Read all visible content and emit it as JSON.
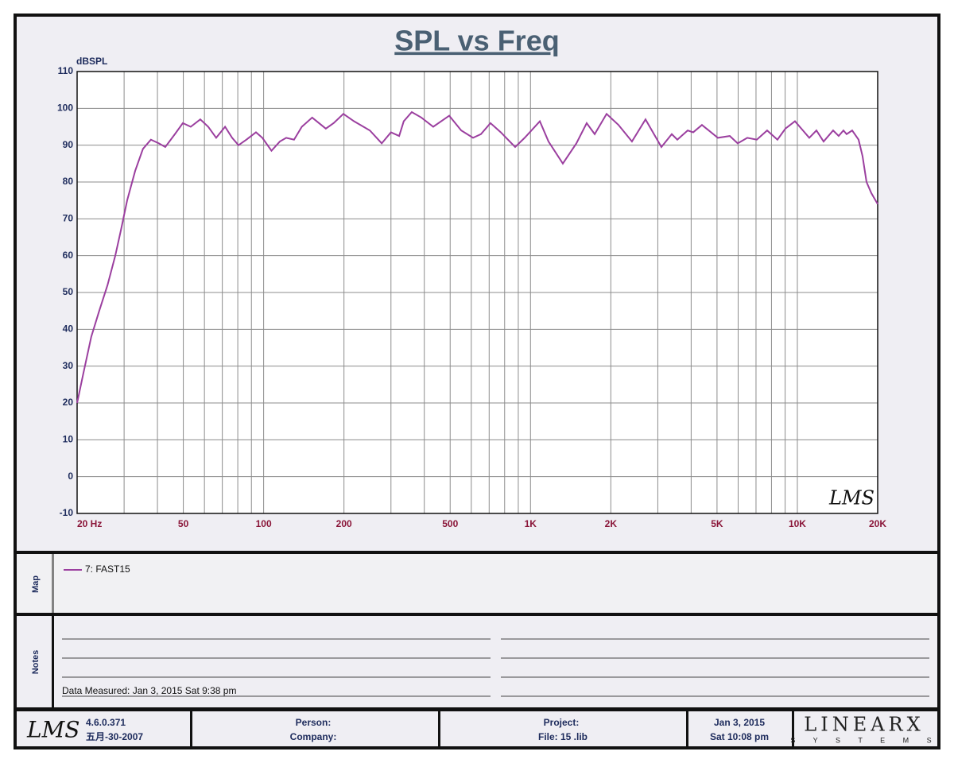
{
  "chart_data": {
    "type": "line",
    "title": "SPL vs Freq",
    "y_label": "dBSPL",
    "xscale": "log",
    "xlim": [
      20,
      20000
    ],
    "ylim": [
      -10,
      110
    ],
    "xticks": [
      {
        "value": 20,
        "label": "20  Hz"
      },
      50,
      100,
      200,
      500,
      {
        "value": 1000,
        "label": "1K"
      },
      {
        "value": 2000,
        "label": "2K"
      },
      {
        "value": 5000,
        "label": "5K"
      },
      {
        "value": 10000,
        "label": "10K"
      },
      {
        "value": 20000,
        "label": "20K"
      }
    ],
    "xgrid": [
      20,
      30,
      40,
      50,
      60,
      70,
      80,
      90,
      100,
      200,
      300,
      400,
      500,
      600,
      700,
      800,
      900,
      1000,
      2000,
      3000,
      4000,
      5000,
      6000,
      7000,
      8000,
      9000,
      10000,
      20000
    ],
    "yticks": [
      -10,
      0,
      10,
      20,
      30,
      40,
      50,
      60,
      70,
      80,
      90,
      100,
      110
    ],
    "grid": true,
    "x": [
      20,
      21.1,
      22.6,
      24.2,
      26,
      27.8,
      29.2,
      30.8,
      33,
      35.3,
      37.8,
      40.5,
      42.8,
      46.5,
      49.8,
      53.3,
      57.9,
      62,
      66.4,
      71.7,
      76.2,
      80.5,
      86.2,
      93.6,
      98.9,
      107,
      115,
      121.5,
      130,
      139,
      152,
      171,
      183,
      199,
      218,
      250,
      277,
      300,
      322,
      335,
      359,
      390,
      432,
      496,
      550,
      609,
      652,
      708,
      774,
      876,
      951,
      1084,
      1168,
      1322,
      1486,
      1624,
      1740,
      1928,
      2136,
      2400,
      2698,
      3094,
      3384,
      3550,
      3882,
      4072,
      4390,
      5036,
      5582,
      5978,
      6492,
      7048,
      7704,
      8422,
      9020,
      9796,
      10492,
      11084,
      11790,
      12542,
      13616,
      14286,
      14884,
      15298,
      16050,
      16960,
      17552,
      18166,
      18928,
      20000
    ],
    "series": [
      {
        "name": "7:  FAST15",
        "color": "#9b3f9f",
        "values": [
          20,
          28,
          38,
          45,
          52,
          60,
          67,
          75,
          83,
          89,
          91.5,
          90.5,
          89.5,
          93,
          96,
          95,
          97,
          95,
          92,
          95,
          92,
          90,
          91.5,
          93.5,
          92,
          88.5,
          91,
          92,
          91.5,
          95,
          97.5,
          94.5,
          96,
          98.5,
          96.5,
          94,
          90.5,
          93.5,
          92.5,
          96.5,
          99,
          97.5,
          95,
          98,
          94,
          92,
          93,
          96,
          93.5,
          89.5,
          92,
          96.5,
          91,
          85,
          90.5,
          96,
          93,
          98.5,
          95.5,
          91,
          97,
          89.5,
          93,
          91.5,
          94,
          93.5,
          95.5,
          92,
          92.5,
          90.5,
          92,
          91.5,
          94,
          91.5,
          94.5,
          96.5,
          94,
          92,
          94,
          91,
          94,
          92.5,
          94,
          93,
          94,
          91.5,
          87,
          80,
          77,
          74
        ]
      }
    ],
    "logo": "LMS"
  },
  "map": {
    "label": "Map"
  },
  "notes": {
    "label": "Notes",
    "measured": "Data Measured: Jan  3, 2015  Sat  9:38 pm"
  },
  "footer": {
    "logo": "LMS",
    "version": "4.6.0.371",
    "build_date": "五月-30-2007",
    "person": "Person:",
    "company": "Company:",
    "project": "Project:",
    "file": "File:  15 .lib",
    "date": "Jan  3, 2015",
    "time": "Sat 10:08 pm",
    "brand": "LINEARX",
    "brand_sub": "S Y S T E M S"
  }
}
